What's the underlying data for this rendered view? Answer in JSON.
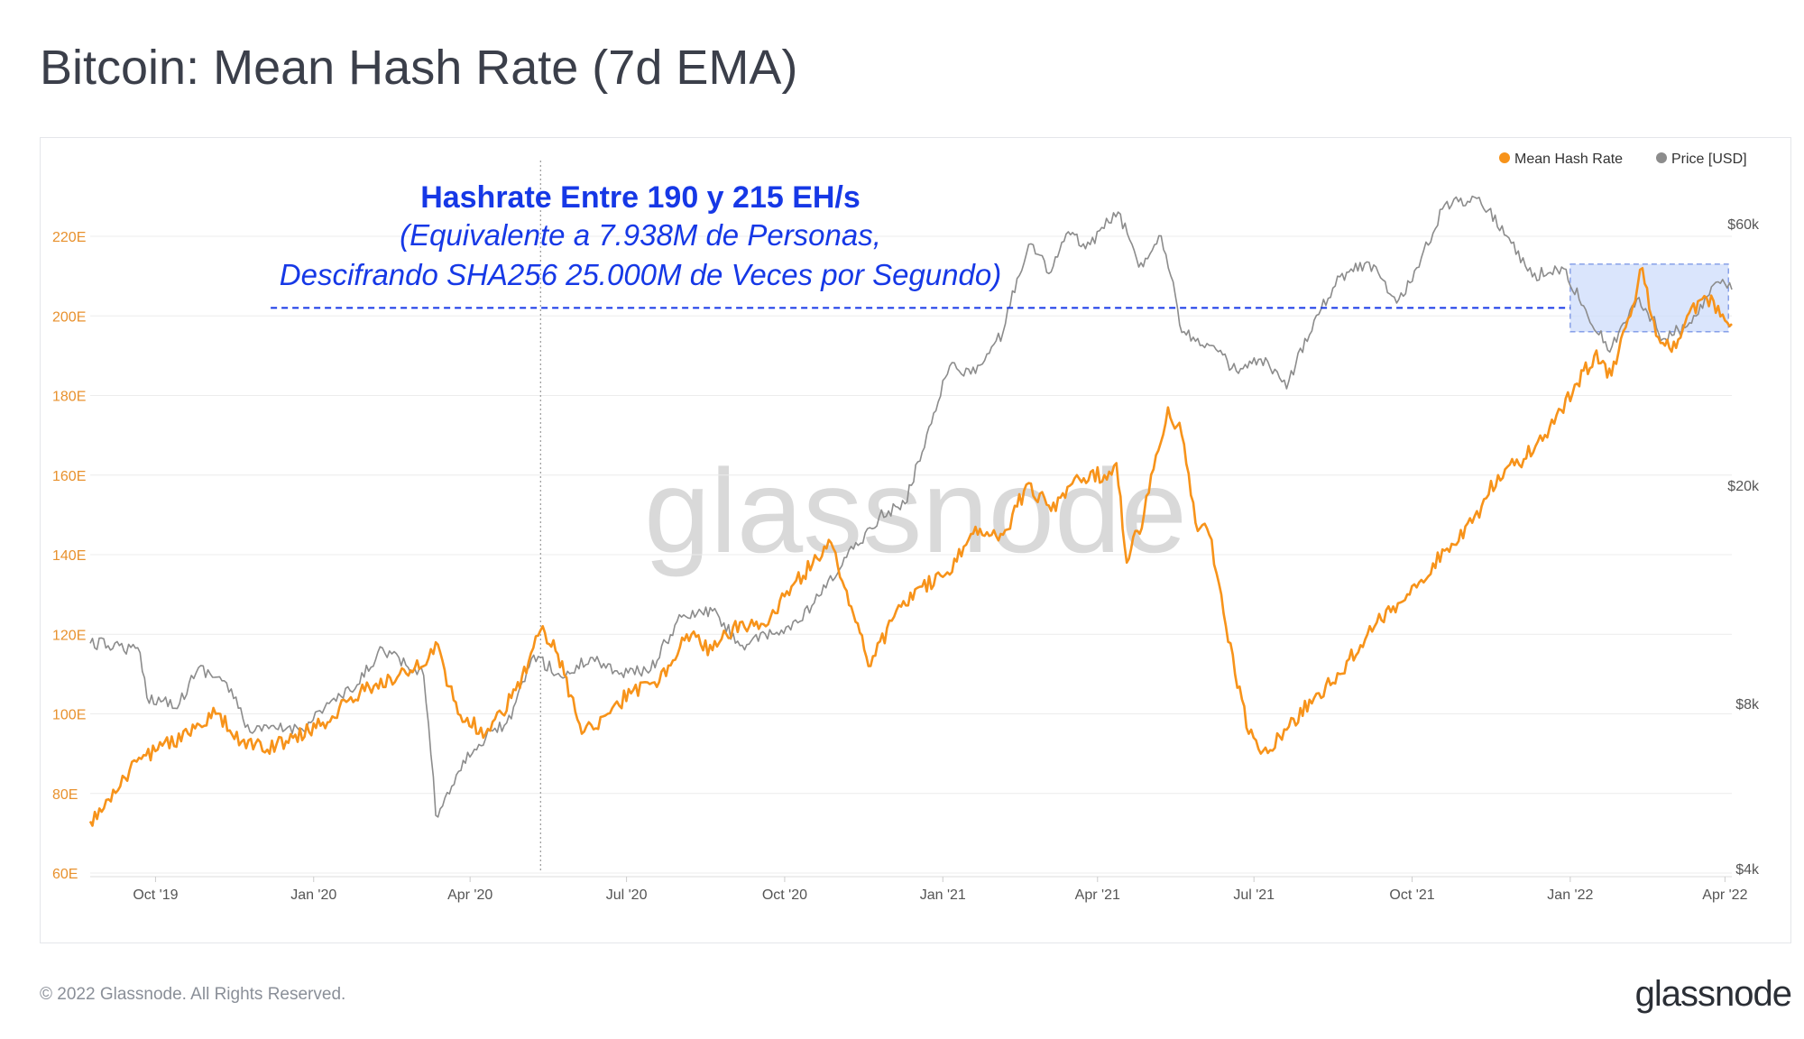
{
  "title": "Bitcoin: Mean Hash Rate (7d EMA)",
  "footer": "© 2022 Glassnode. All Rights Reserved.",
  "brand": "glassnode",
  "watermark": "glassnode",
  "chart_data": {
    "type": "line",
    "title": "Bitcoin: Mean Hash Rate (7d EMA)",
    "x_range": [
      "2019-08-24",
      "2022-04-05"
    ],
    "x_ticks": [
      {
        "date": "2019-10-01",
        "label": "Oct '19"
      },
      {
        "date": "2020-01-01",
        "label": "Jan '20"
      },
      {
        "date": "2020-04-01",
        "label": "Apr '20"
      },
      {
        "date": "2020-07-01",
        "label": "Jul '20"
      },
      {
        "date": "2020-10-01",
        "label": "Oct '20"
      },
      {
        "date": "2021-01-01",
        "label": "Jan '21"
      },
      {
        "date": "2021-04-01",
        "label": "Apr '21"
      },
      {
        "date": "2021-07-01",
        "label": "Jul '21"
      },
      {
        "date": "2021-10-01",
        "label": "Oct '21"
      },
      {
        "date": "2022-01-01",
        "label": "Jan '22"
      },
      {
        "date": "2022-04-01",
        "label": "Apr '22"
      }
    ],
    "left_axis": {
      "ylim": [
        60,
        220
      ],
      "unit_suffix": "E",
      "ticks": [
        {
          "value": 60,
          "label": "60E"
        },
        {
          "value": 80,
          "label": "80E"
        },
        {
          "value": 100,
          "label": "100E"
        },
        {
          "value": 120,
          "label": "120E"
        },
        {
          "value": 140,
          "label": "140E"
        },
        {
          "value": 160,
          "label": "160E"
        },
        {
          "value": 180,
          "label": "180E"
        },
        {
          "value": 200,
          "label": "200E"
        },
        {
          "value": 220,
          "label": "220E"
        }
      ]
    },
    "right_axis": {
      "scale": "log",
      "ticks": [
        {
          "value": 4000,
          "label": "$4k"
        },
        {
          "value": 8000,
          "label": "$8k"
        },
        {
          "value": 20000,
          "label": "$20k"
        },
        {
          "value": 60000,
          "label": "$60k"
        }
      ]
    },
    "legend": {
      "placement": "top-right"
    },
    "grid": true,
    "series": [
      {
        "name": "Mean Hash Rate",
        "axis": "left",
        "color": "#f7931a",
        "points": [
          [
            "2019-08-24",
            73
          ],
          [
            "2019-09-05",
            78
          ],
          [
            "2019-09-20",
            88
          ],
          [
            "2019-10-05",
            92
          ],
          [
            "2019-10-20",
            95
          ],
          [
            "2019-11-05",
            100
          ],
          [
            "2019-11-20",
            93
          ],
          [
            "2019-12-05",
            91
          ],
          [
            "2019-12-20",
            94
          ],
          [
            "2020-01-05",
            97
          ],
          [
            "2020-01-20",
            103
          ],
          [
            "2020-02-05",
            107
          ],
          [
            "2020-02-20",
            110
          ],
          [
            "2020-03-05",
            112
          ],
          [
            "2020-03-12",
            118
          ],
          [
            "2020-03-25",
            100
          ],
          [
            "2020-04-10",
            95
          ],
          [
            "2020-04-25",
            104
          ],
          [
            "2020-05-05",
            113
          ],
          [
            "2020-05-12",
            121
          ],
          [
            "2020-05-22",
            115
          ],
          [
            "2020-06-05",
            95
          ],
          [
            "2020-06-20",
            100
          ],
          [
            "2020-07-05",
            106
          ],
          [
            "2020-07-20",
            108
          ],
          [
            "2020-08-05",
            120
          ],
          [
            "2020-08-20",
            116
          ],
          [
            "2020-09-05",
            123
          ],
          [
            "2020-09-20",
            122
          ],
          [
            "2020-10-05",
            132
          ],
          [
            "2020-10-20",
            139
          ],
          [
            "2020-10-28",
            143
          ],
          [
            "2020-11-10",
            125
          ],
          [
            "2020-11-20",
            112
          ],
          [
            "2020-12-05",
            126
          ],
          [
            "2020-12-20",
            132
          ],
          [
            "2021-01-05",
            135
          ],
          [
            "2021-01-20",
            147
          ],
          [
            "2021-02-05",
            145
          ],
          [
            "2021-02-20",
            158
          ],
          [
            "2021-03-05",
            151
          ],
          [
            "2021-03-20",
            160
          ],
          [
            "2021-04-05",
            160
          ],
          [
            "2021-04-12",
            163
          ],
          [
            "2021-04-18",
            138
          ],
          [
            "2021-04-28",
            150
          ],
          [
            "2021-05-05",
            165
          ],
          [
            "2021-05-12",
            177
          ],
          [
            "2021-05-20",
            170
          ],
          [
            "2021-05-28",
            148
          ],
          [
            "2021-06-05",
            145
          ],
          [
            "2021-06-12",
            130
          ],
          [
            "2021-06-20",
            110
          ],
          [
            "2021-06-28",
            95
          ],
          [
            "2021-07-05",
            90
          ],
          [
            "2021-07-20",
            96
          ],
          [
            "2021-08-05",
            104
          ],
          [
            "2021-08-20",
            110
          ],
          [
            "2021-09-05",
            120
          ],
          [
            "2021-09-20",
            127
          ],
          [
            "2021-10-05",
            133
          ],
          [
            "2021-10-20",
            141
          ],
          [
            "2021-11-05",
            148
          ],
          [
            "2021-11-20",
            160
          ],
          [
            "2021-12-05",
            164
          ],
          [
            "2021-12-20",
            172
          ],
          [
            "2022-01-05",
            183
          ],
          [
            "2022-01-15",
            190
          ],
          [
            "2022-01-25",
            185
          ],
          [
            "2022-02-05",
            200
          ],
          [
            "2022-02-12",
            212
          ],
          [
            "2022-02-20",
            195
          ],
          [
            "2022-03-01",
            191
          ],
          [
            "2022-03-10",
            200
          ],
          [
            "2022-03-20",
            205
          ],
          [
            "2022-04-05",
            198
          ]
        ]
      },
      {
        "name": "Price [USD]",
        "axis": "right",
        "color": "#8c8c8c",
        "points": [
          [
            "2019-08-24",
            10300
          ],
          [
            "2019-09-10",
            10200
          ],
          [
            "2019-09-22",
            9900
          ],
          [
            "2019-09-26",
            8200
          ],
          [
            "2019-10-15",
            8000
          ],
          [
            "2019-10-26",
            9300
          ],
          [
            "2019-11-10",
            8800
          ],
          [
            "2019-11-25",
            7100
          ],
          [
            "2019-12-10",
            7200
          ],
          [
            "2019-12-25",
            7200
          ],
          [
            "2020-01-10",
            8000
          ],
          [
            "2020-01-25",
            8500
          ],
          [
            "2020-02-10",
            10100
          ],
          [
            "2020-02-25",
            9300
          ],
          [
            "2020-03-05",
            9000
          ],
          [
            "2020-03-12",
            5000
          ],
          [
            "2020-03-16",
            5200
          ],
          [
            "2020-03-28",
            6300
          ],
          [
            "2020-04-10",
            6900
          ],
          [
            "2020-04-25",
            7500
          ],
          [
            "2020-05-08",
            9800
          ],
          [
            "2020-05-25",
            8900
          ],
          [
            "2020-06-10",
            9700
          ],
          [
            "2020-06-28",
            9100
          ],
          [
            "2020-07-15",
            9200
          ],
          [
            "2020-08-02",
            11500
          ],
          [
            "2020-08-20",
            11800
          ],
          [
            "2020-09-05",
            10200
          ],
          [
            "2020-09-25",
            10700
          ],
          [
            "2020-10-10",
            11300
          ],
          [
            "2020-10-25",
            13000
          ],
          [
            "2020-11-10",
            15300
          ],
          [
            "2020-11-25",
            17500
          ],
          [
            "2020-12-10",
            18500
          ],
          [
            "2020-12-20",
            23000
          ],
          [
            "2021-01-05",
            33000
          ],
          [
            "2021-01-20",
            32000
          ],
          [
            "2021-02-05",
            38000
          ],
          [
            "2021-02-20",
            55000
          ],
          [
            "2021-03-05",
            49000
          ],
          [
            "2021-03-15",
            58000
          ],
          [
            "2021-03-25",
            54000
          ],
          [
            "2021-04-13",
            63000
          ],
          [
            "2021-04-25",
            50000
          ],
          [
            "2021-05-08",
            57000
          ],
          [
            "2021-05-15",
            47000
          ],
          [
            "2021-05-20",
            38000
          ],
          [
            "2021-06-05",
            36000
          ],
          [
            "2021-06-22",
            32000
          ],
          [
            "2021-07-05",
            34000
          ],
          [
            "2021-07-20",
            30000
          ],
          [
            "2021-08-05",
            40000
          ],
          [
            "2021-08-20",
            48000
          ],
          [
            "2021-09-06",
            51000
          ],
          [
            "2021-09-22",
            43000
          ],
          [
            "2021-10-05",
            50000
          ],
          [
            "2021-10-20",
            65000
          ],
          [
            "2021-11-09",
            67000
          ],
          [
            "2021-11-25",
            57000
          ],
          [
            "2021-12-10",
            48000
          ],
          [
            "2021-12-27",
            50000
          ],
          [
            "2022-01-10",
            41800
          ],
          [
            "2022-01-24",
            35000
          ],
          [
            "2022-02-10",
            44000
          ],
          [
            "2022-02-24",
            37000
          ],
          [
            "2022-03-10",
            39000
          ],
          [
            "2022-03-28",
            47000
          ],
          [
            "2022-04-05",
            45500
          ]
        ]
      }
    ],
    "annotations": [
      {
        "type": "text",
        "text": "Hashrate Entre 190 y 215 EH/s",
        "color": "#1638e6"
      },
      {
        "type": "text",
        "text": "(Equivalente a 7.938M de Personas,",
        "color": "#1638e6"
      },
      {
        "type": "text",
        "text": "Descifrando SHA256 25.000M de Veces por Segundo)",
        "color": "#1638e6"
      },
      {
        "type": "hline",
        "value": 202,
        "axis": "left",
        "style": "dashed",
        "color": "#1638e6",
        "x_start": "2019-12-28",
        "x_end": "2022-01-01"
      },
      {
        "type": "box",
        "x_start": "2022-01-01",
        "x_end": "2022-04-03",
        "y_low": 196,
        "y_high": 213,
        "axis": "left",
        "color": "#1638e6"
      },
      {
        "type": "vline",
        "date": "2020-05-12",
        "style": "dotted",
        "color": "#999999"
      }
    ]
  }
}
